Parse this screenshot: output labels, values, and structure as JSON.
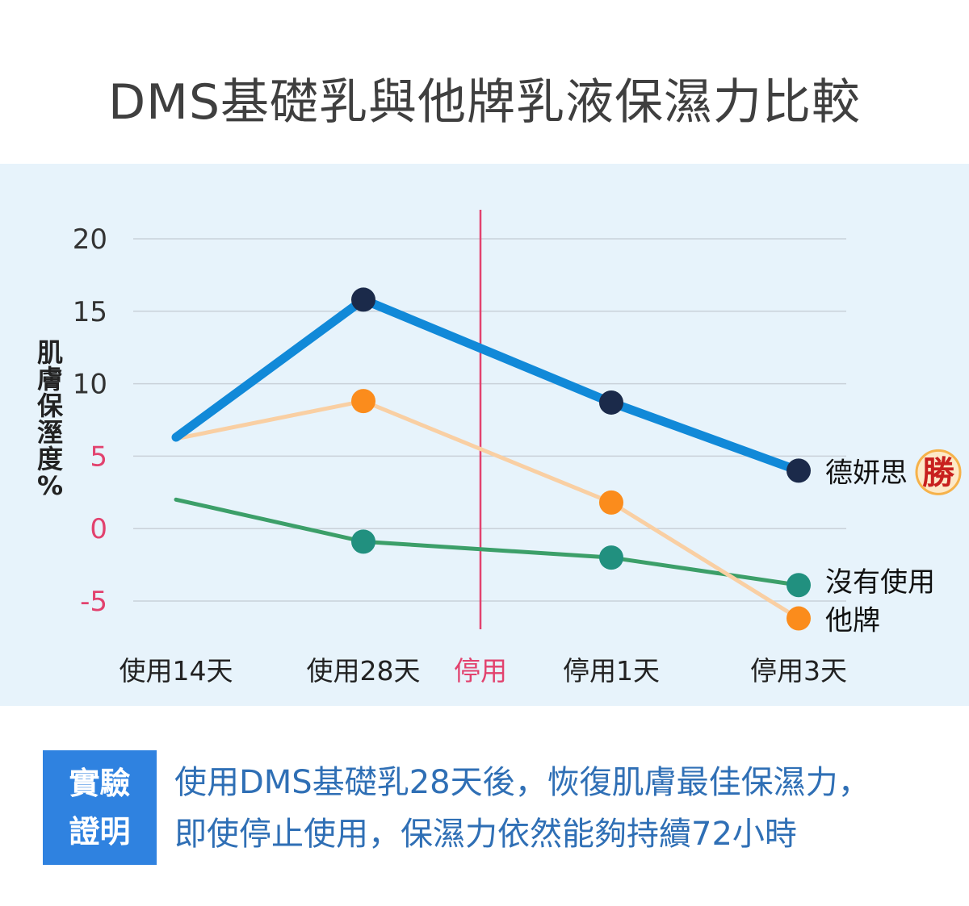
{
  "title": "DMS基礎乳與他牌乳液保濕力比較",
  "chart_data": {
    "type": "line",
    "ylabel": "肌膚保溼度%",
    "ylim": [
      -6.5,
      21
    ],
    "yticks": [
      20,
      15,
      10,
      5,
      0,
      -5
    ],
    "categories": [
      "使用14天",
      "使用28天",
      "停用",
      "停用1天",
      "停用3天"
    ],
    "divider_category": "停用",
    "grid": true,
    "series": [
      {
        "name": "德妍思",
        "badge": "勝",
        "color": "#1189d8",
        "point_color": "#1b2a4a",
        "points": [
          [
            0,
            6.3
          ],
          [
            1,
            15.8
          ],
          [
            3,
            8.7
          ],
          [
            4,
            4.0
          ]
        ]
      },
      {
        "name": "他牌",
        "color": "#f9cfa3",
        "point_color": "#fb8c1c",
        "points": [
          [
            0,
            6.2
          ],
          [
            1,
            8.8
          ],
          [
            3,
            1.8
          ],
          [
            4,
            -6.2
          ]
        ]
      },
      {
        "name": "沒有使用",
        "color": "#3c9f69",
        "point_color": "#21907f",
        "points": [
          [
            0,
            2.0
          ],
          [
            1,
            -0.9
          ],
          [
            3,
            -2.0
          ],
          [
            4,
            -3.9
          ]
        ]
      }
    ],
    "colors": {
      "grid": "#c9d1d9",
      "axis_text": "#333333",
      "pink_text": "#e2426e",
      "divider": "#e2426e"
    }
  },
  "proof": {
    "badge_line1": "實驗",
    "badge_line2": "證明",
    "line1": "使用DMS基礎乳28天後，恢復肌膚最佳保濕力，",
    "line2": "即使停止使用，保濕力依然能夠持續72小時"
  }
}
